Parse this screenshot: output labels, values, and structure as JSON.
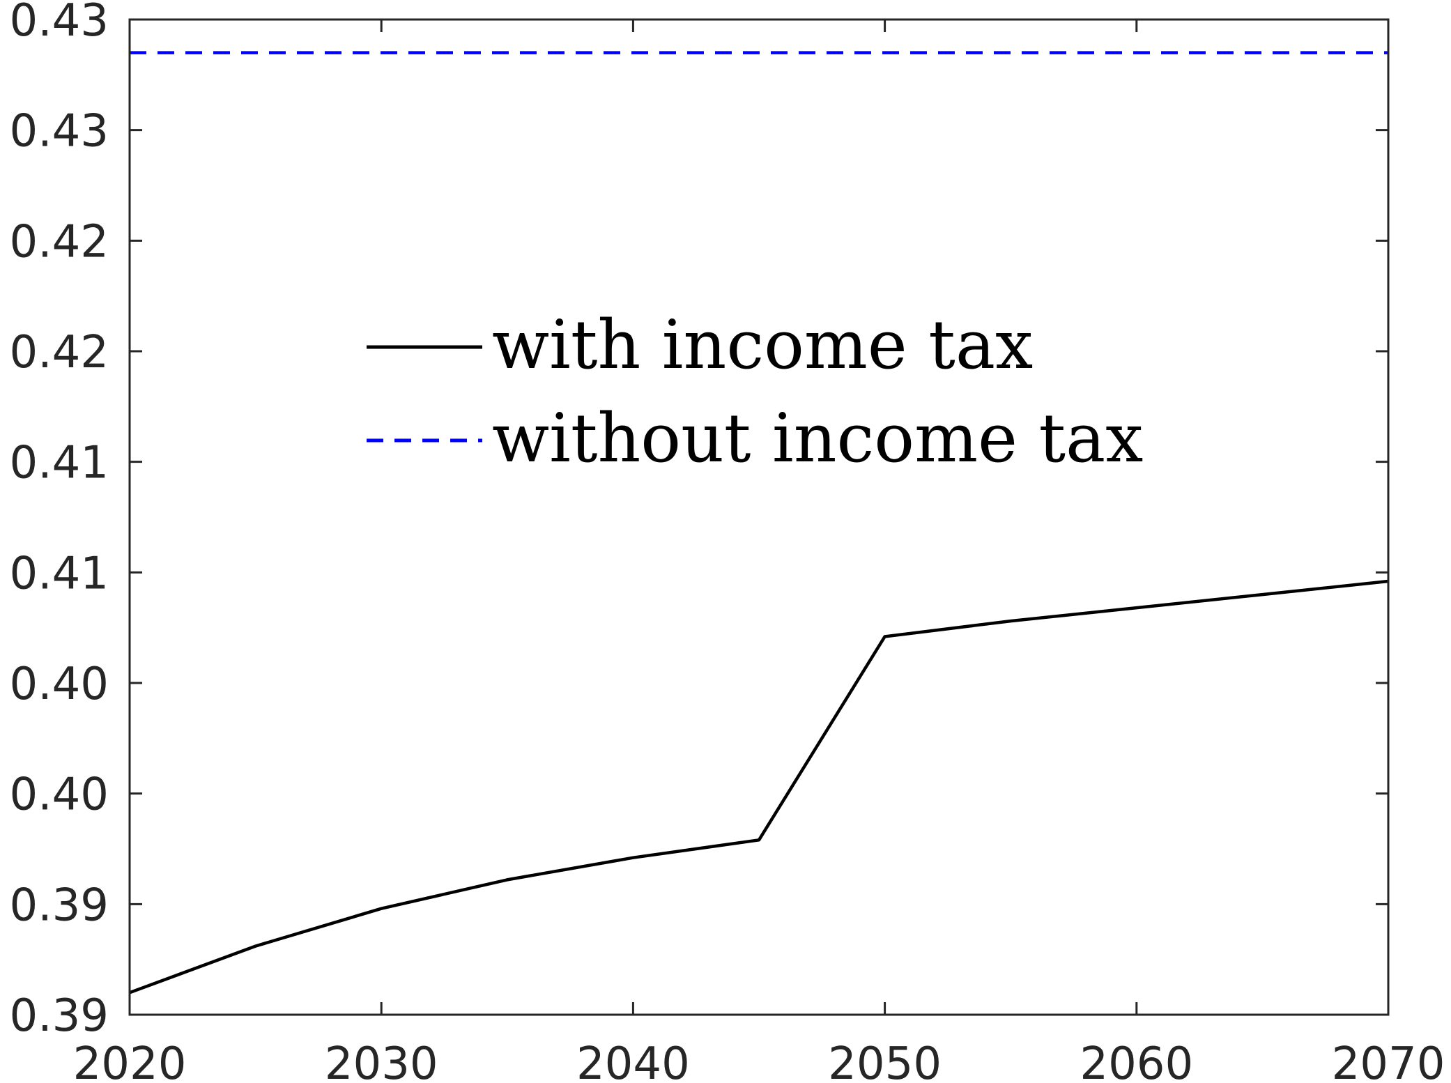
{
  "chart_data": {
    "type": "line",
    "title": "",
    "xlabel": "",
    "ylabel": "",
    "xlim": [
      2020,
      2070
    ],
    "ylim": [
      0.385,
      0.43
    ],
    "grid": false,
    "legend_position": "center-left",
    "x_ticks": [
      2020,
      2030,
      2040,
      2050,
      2060,
      2070
    ],
    "x_tick_labels": [
      "2020",
      "2030",
      "2040",
      "2050",
      "2060",
      "2070"
    ],
    "y_ticks": [
      0.385,
      0.39,
      0.395,
      0.4,
      0.405,
      0.41,
      0.415,
      0.42,
      0.425,
      0.43
    ],
    "y_tick_labels": [
      "0.39",
      "0.39",
      "0.40",
      "0.40",
      "0.41",
      "0.41",
      "0.42",
      "0.42",
      "0.43",
      "0.43"
    ],
    "series": [
      {
        "name": "with income tax",
        "color": "#000000",
        "line_style": "solid",
        "x": [
          2020,
          2025,
          2030,
          2035,
          2040,
          2045,
          2050,
          2055,
          2060,
          2065,
          2070
        ],
        "y": [
          0.386,
          0.3881,
          0.3898,
          0.3911,
          0.3921,
          0.3929,
          0.4021,
          0.4028,
          0.4034,
          0.404,
          0.4046
        ]
      },
      {
        "name": "without income tax",
        "color": "#0000ff",
        "line_style": "dashed",
        "x": [
          2020,
          2070
        ],
        "y": [
          0.4285,
          0.4285
        ]
      }
    ]
  }
}
